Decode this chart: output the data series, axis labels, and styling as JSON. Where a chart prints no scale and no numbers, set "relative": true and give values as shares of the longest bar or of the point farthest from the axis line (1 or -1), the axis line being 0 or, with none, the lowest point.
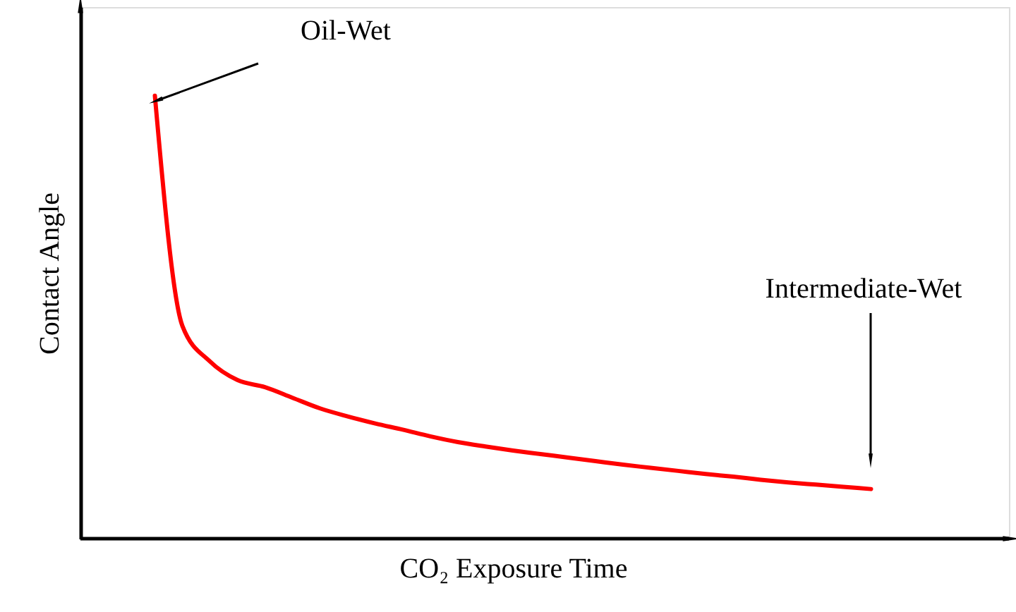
{
  "chart_data": {
    "type": "line",
    "relative": true,
    "xlabel": "CO₂ Exposure Time",
    "ylabel": "Contact Angle",
    "marker": "none",
    "line_style": "solid",
    "categories": [
      null,
      null,
      null,
      null,
      null,
      null,
      null,
      null,
      null,
      null,
      null,
      null,
      null,
      null,
      null,
      null,
      null,
      null,
      null,
      null,
      null,
      null,
      null,
      null,
      null,
      null,
      null
    ],
    "series": [
      {
        "color": "#ff0000",
        "values": [
          1.0,
          0.48,
          0.4,
          0.358,
          0.342,
          0.318,
          0.294,
          0.276,
          0.26,
          0.246,
          0.231,
          0.218,
          0.208,
          0.199,
          0.191,
          0.183,
          0.175,
          0.167,
          0.16,
          0.153,
          0.146,
          0.14,
          0.133,
          0.127,
          0.122,
          0.117,
          0.112
        ]
      }
    ],
    "annotations": [
      "Oil-Wet",
      "Intermediate-Wet"
    ]
  }
}
